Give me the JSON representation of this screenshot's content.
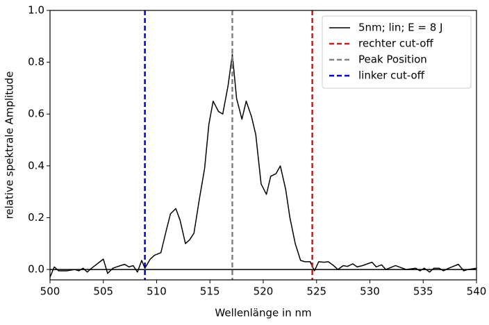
{
  "chart_data": {
    "type": "line",
    "xlabel": "Wellenlänge in nm",
    "ylabel": "relative spektrale Amplitude",
    "xlim": [
      500,
      540
    ],
    "ylim": [
      -0.04,
      1.0
    ],
    "xticks": [
      500,
      505,
      510,
      515,
      520,
      525,
      530,
      535,
      540
    ],
    "yticks": [
      {
        "value": 0,
        "label": "0.0"
      },
      0.2,
      0.4,
      0.6,
      0.8,
      {
        "value": 1,
        "label": "1.0"
      }
    ],
    "legend": "upper right",
    "series": [
      {
        "name": "5nm; lin; E = 8 J",
        "color": "#000000",
        "x": [
          500.0,
          500.4,
          500.8,
          501.6,
          502.3,
          502.7,
          503.1,
          503.5,
          503.9,
          505.0,
          505.4,
          505.9,
          506.6,
          507.0,
          507.4,
          507.8,
          508.2,
          508.6,
          508.9,
          509.4,
          509.8,
          510.4,
          510.9,
          511.3,
          511.8,
          512.2,
          512.7,
          513.1,
          513.5,
          514.0,
          514.5,
          514.9,
          515.3,
          515.8,
          516.2,
          516.7,
          517.1,
          517.5,
          518.0,
          518.4,
          518.9,
          519.3,
          519.8,
          520.3,
          520.7,
          521.2,
          521.6,
          522.1,
          522.5,
          523.0,
          523.5,
          523.9,
          524.4,
          524.8,
          525.2,
          525.7,
          526.1,
          526.6,
          527.0,
          527.5,
          527.9,
          528.4,
          528.8,
          529.3,
          530.2,
          530.6,
          531.1,
          531.5,
          532.4,
          533.4,
          534.3,
          534.7,
          535.1,
          535.6,
          536.0,
          536.5,
          536.9,
          537.4,
          538.3,
          538.8,
          539.2,
          540.0
        ],
        "values": [
          -0.03,
          0.01,
          -0.005,
          -0.005,
          0.0,
          -0.005,
          0.005,
          -0.01,
          0.005,
          0.04,
          -0.015,
          0.005,
          0.015,
          0.02,
          0.01,
          0.015,
          -0.01,
          0.035,
          0.005,
          0.04,
          0.055,
          0.065,
          0.15,
          0.215,
          0.235,
          0.19,
          0.1,
          0.115,
          0.14,
          0.27,
          0.39,
          0.56,
          0.65,
          0.61,
          0.6,
          0.71,
          0.83,
          0.66,
          0.58,
          0.65,
          0.59,
          0.52,
          0.33,
          0.29,
          0.36,
          0.37,
          0.4,
          0.31,
          0.2,
          0.1,
          0.035,
          0.03,
          0.03,
          -0.005,
          0.03,
          0.028,
          0.03,
          0.015,
          0.0,
          0.015,
          0.012,
          0.022,
          0.01,
          0.015,
          0.028,
          0.01,
          0.018,
          0.0,
          0.015,
          0.0,
          0.005,
          -0.005,
          0.005,
          -0.01,
          0.005,
          0.005,
          -0.005,
          0.005,
          0.02,
          -0.005,
          0.0,
          0.005
        ]
      }
    ],
    "vlines": [
      {
        "name": "rechter cut-off",
        "color": "#b22222",
        "x": 524.6
      },
      {
        "name": "Peak Position",
        "color": "#808080",
        "x": 517.1
      },
      {
        "name": "linker cut-off",
        "color": "#0000cd",
        "x": 508.9
      }
    ],
    "hlines": [
      {
        "y": 0,
        "color": "#000000"
      }
    ]
  }
}
